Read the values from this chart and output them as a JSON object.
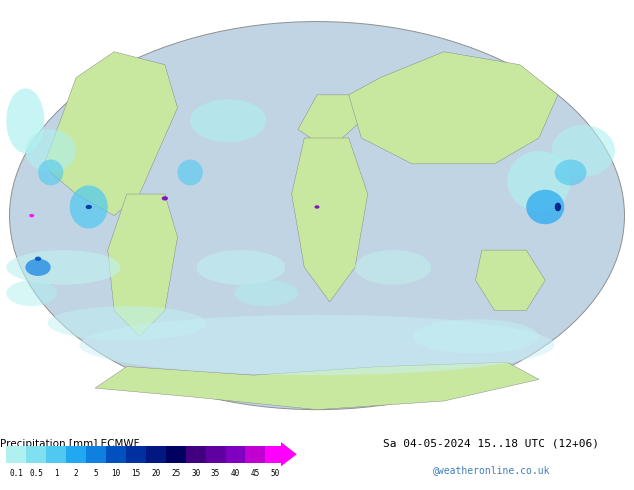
{
  "title_left": "Precipitation [mm] ECMWF",
  "title_right": "Sa 04-05-2024 15..18 UTC (12+06)",
  "copyright": "@weatheronline.co.uk",
  "colorbar_values": [
    0.1,
    0.5,
    1,
    2,
    5,
    10,
    15,
    20,
    25,
    30,
    35,
    40,
    45,
    50
  ],
  "colorbar_colors": [
    "#b0f0f0",
    "#80e0f0",
    "#50c8f0",
    "#20a8f0",
    "#1080e0",
    "#0050c0",
    "#0030a0",
    "#001880",
    "#000060",
    "#400080",
    "#6000a0",
    "#8000c0",
    "#c000d0",
    "#ff00ff"
  ],
  "background_color": "#ffffff",
  "map_ocean_color": "#d0e8f8",
  "map_land_color": "#c8e8a0",
  "map_border_color": "#808080",
  "font_color_left": "#000000",
  "font_color_right": "#000000",
  "font_color_copyright": "#4080c0"
}
